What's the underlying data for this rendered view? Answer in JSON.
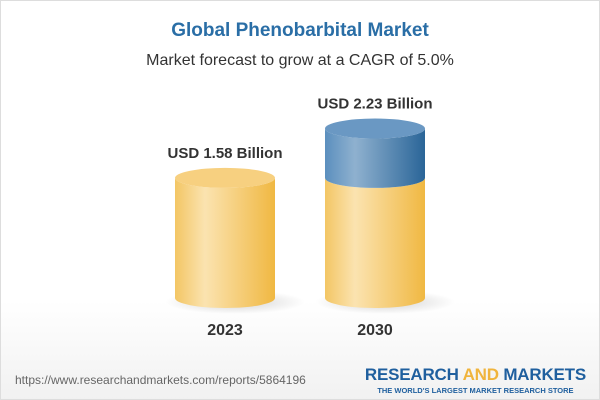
{
  "title": "Global Phenobarbital Market",
  "subtitle": "Market forecast to grow at a CAGR of 5.0%",
  "chart_data": {
    "type": "bar",
    "style": "3d-cylinder",
    "categories": [
      "2023",
      "2030"
    ],
    "values": [
      1.58,
      2.23
    ],
    "data_labels": [
      "USD 1.58 Billion",
      "USD 2.23 Billion"
    ],
    "unit": "USD Billion",
    "growth_segment_color": "#4f86b8",
    "base_color": "#f5c862",
    "grid": false
  },
  "footer": {
    "url": "https://www.researchandmarkets.com/reports/5864196",
    "logo_part1": "RESEARCH ",
    "logo_part2": "AND",
    "logo_part3": " MARKETS",
    "tagline": "THE WORLD'S LARGEST MARKET RESEARCH STORE"
  }
}
